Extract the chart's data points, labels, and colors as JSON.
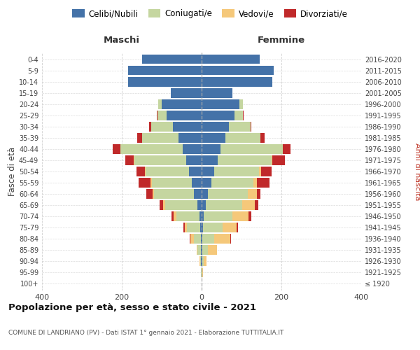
{
  "age_groups": [
    "100+",
    "95-99",
    "90-94",
    "85-89",
    "80-84",
    "75-79",
    "70-74",
    "65-69",
    "60-64",
    "55-59",
    "50-54",
    "45-49",
    "40-44",
    "35-39",
    "30-34",
    "25-29",
    "20-24",
    "15-19",
    "10-14",
    "5-9",
    "0-4"
  ],
  "birth_years": [
    "≤ 1920",
    "1921-1925",
    "1926-1930",
    "1931-1935",
    "1936-1940",
    "1941-1945",
    "1946-1950",
    "1951-1955",
    "1956-1960",
    "1961-1965",
    "1966-1970",
    "1971-1975",
    "1976-1980",
    "1981-1985",
    "1986-1990",
    "1991-1995",
    "1996-2000",
    "2001-2005",
    "2006-2010",
    "2011-2015",
    "2016-2020"
  ],
  "colors": {
    "celibi": "#4472a8",
    "coniugati": "#c5d6a0",
    "vedovi": "#f5c87a",
    "divorziati": "#c0292a"
  },
  "maschi": {
    "celibi": [
      0,
      0,
      1,
      2,
      2,
      4,
      6,
      10,
      20,
      25,
      32,
      38,
      48,
      58,
      72,
      88,
      100,
      78,
      185,
      185,
      150
    ],
    "coniugati": [
      0,
      1,
      3,
      8,
      18,
      32,
      58,
      82,
      100,
      100,
      108,
      130,
      155,
      92,
      55,
      22,
      8,
      0,
      0,
      0,
      0
    ],
    "vedovi": [
      0,
      0,
      1,
      3,
      8,
      6,
      6,
      5,
      3,
      3,
      2,
      2,
      1,
      0,
      0,
      0,
      0,
      0,
      0,
      0,
      0
    ],
    "divorziati": [
      0,
      0,
      0,
      0,
      2,
      3,
      6,
      8,
      15,
      30,
      22,
      22,
      18,
      12,
      4,
      2,
      0,
      0,
      0,
      0,
      0
    ]
  },
  "femmine": {
    "celibi": [
      0,
      0,
      1,
      2,
      2,
      4,
      6,
      10,
      16,
      24,
      32,
      40,
      48,
      60,
      68,
      82,
      95,
      78,
      178,
      180,
      145
    ],
    "coniugati": [
      0,
      2,
      5,
      14,
      30,
      48,
      72,
      92,
      100,
      105,
      112,
      135,
      155,
      88,
      55,
      22,
      8,
      0,
      0,
      0,
      0
    ],
    "vedovi": [
      0,
      2,
      6,
      22,
      40,
      36,
      40,
      32,
      22,
      10,
      5,
      3,
      1,
      0,
      0,
      0,
      0,
      0,
      0,
      0,
      0
    ],
    "divorziati": [
      0,
      0,
      0,
      0,
      2,
      3,
      6,
      8,
      10,
      32,
      26,
      30,
      18,
      10,
      2,
      2,
      0,
      0,
      0,
      0,
      0
    ]
  },
  "title": "Popolazione per età, sesso e stato civile - 2021",
  "subtitle": "COMUNE DI LANDRIANO (PV) - Dati ISTAT 1° gennaio 2021 - Elaborazione TUTTITALIA.IT",
  "xlabel_maschi": "Maschi",
  "xlabel_femmine": "Femmine",
  "ylabel_left": "Fasce di età",
  "ylabel_right": "Anni di nascita",
  "legend_labels": [
    "Celibi/Nubili",
    "Coniugati/e",
    "Vedovi/e",
    "Divorziati/e"
  ],
  "xlim": 400,
  "background_color": "#ffffff",
  "grid_color": "#cccccc"
}
